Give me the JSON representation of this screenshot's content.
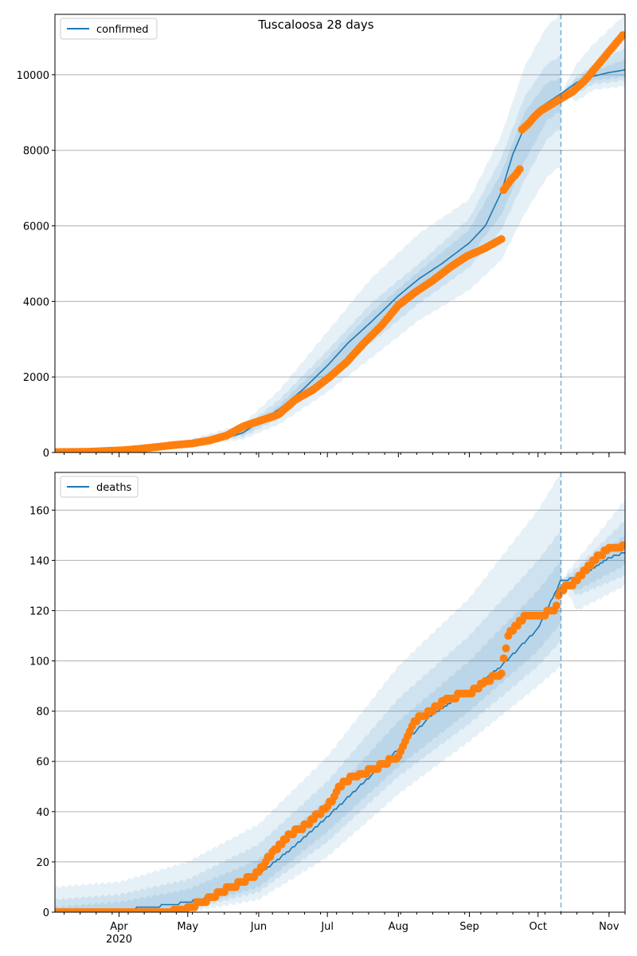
{
  "figure_title": "Tuscaloosa 28 days",
  "colors": {
    "model": "#1f77b4",
    "observed": "#ff7f0e",
    "band": "#1f77b4",
    "grid": "#b0b0b0",
    "forecast_line": "#1f77b4"
  },
  "chart_data": [
    {
      "type": "line",
      "name": "confirmed",
      "title": "Tuscaloosa 28 days",
      "legend": [
        "confirmed"
      ],
      "legend_position": "top-left",
      "xlabel": "",
      "ylabel": "",
      "xlim": [
        "2020-03-04",
        "2020-11-08"
      ],
      "ylim": [
        0,
        11600
      ],
      "yticks": [
        0,
        2000,
        4000,
        6000,
        8000,
        10000
      ],
      "ytick_labels": [
        "0",
        "2000",
        "4000",
        "6000",
        "8000",
        "10000"
      ],
      "grid": "y",
      "forecast_start": "2020-10-11",
      "model": {
        "x": [
          "2020-03-04",
          "2020-03-15",
          "2020-04-01",
          "2020-04-15",
          "2020-05-01",
          "2020-05-15",
          "2020-05-25",
          "2020-06-01",
          "2020-06-10",
          "2020-06-20",
          "2020-07-01",
          "2020-07-10",
          "2020-07-20",
          "2020-08-01",
          "2020-08-10",
          "2020-08-20",
          "2020-09-01",
          "2020-09-08",
          "2020-09-15",
          "2020-09-20",
          "2020-09-25",
          "2020-10-01",
          "2020-10-06",
          "2020-10-11",
          "2020-10-18",
          "2020-10-25",
          "2020-11-01",
          "2020-11-08"
        ],
        "y": [
          10,
          20,
          50,
          120,
          220,
          330,
          520,
          800,
          1150,
          1650,
          2300,
          2900,
          3450,
          4150,
          4600,
          5000,
          5550,
          6000,
          6900,
          7900,
          8600,
          9100,
          9300,
          9500,
          9800,
          9960,
          10060,
          10130
        ]
      },
      "bands": {
        "x": [
          "2020-03-04",
          "2020-04-01",
          "2020-05-01",
          "2020-05-25",
          "2020-06-10",
          "2020-07-01",
          "2020-07-20",
          "2020-08-10",
          "2020-09-01",
          "2020-09-15",
          "2020-09-25",
          "2020-10-05",
          "2020-10-11",
          "2020-10-18",
          "2020-10-25",
          "2020-11-08"
        ],
        "outer_low": [
          0,
          30,
          150,
          350,
          750,
          1600,
          2500,
          3500,
          4300,
          5100,
          6300,
          7300,
          7600,
          9300,
          9600,
          9700
        ],
        "outer_high": [
          50,
          100,
          330,
          750,
          1650,
          3200,
          4600,
          5800,
          6700,
          8400,
          10200,
          11300,
          11600,
          10300,
          10800,
          11600
        ],
        "mid_low": [
          0,
          40,
          180,
          420,
          900,
          1900,
          2900,
          3950,
          4900,
          5900,
          7200,
          8300,
          8600,
          9500,
          9750,
          9850
        ],
        "mid_high": [
          35,
          80,
          280,
          650,
          1400,
          2700,
          3950,
          5000,
          6200,
          7800,
          9400,
          10300,
          10500,
          9950,
          10250,
          10700
        ],
        "inner_low": [
          5,
          45,
          200,
          470,
          1000,
          2050,
          3150,
          4200,
          5200,
          6300,
          7700,
          8800,
          9050,
          9650,
          9850,
          9950
        ],
        "inner_high": [
          25,
          65,
          250,
          580,
          1250,
          2500,
          3700,
          4800,
          5900,
          7400,
          9000,
          9800,
          9900,
          9900,
          10100,
          10400
        ]
      },
      "observed": {
        "segments": [
          {
            "x_start": "2020-03-04",
            "x_end": "2020-09-15",
            "y": [
              10,
              15,
              20,
              40,
              60,
              100,
              150,
              200,
              240,
              320,
              450,
              700,
              850,
              1000,
              1400,
              1650,
              2000,
              2400,
              2900,
              3350,
              3900,
              4250,
              4550,
              4900,
              5200,
              5400,
              5650
            ]
          },
          {
            "x_start": "2020-09-16",
            "x_end": "2020-09-23",
            "y": [
              6950,
              7100,
              7250,
              7350,
              7500
            ]
          },
          {
            "x_start": "2020-09-24",
            "x_end": "2020-11-07",
            "y": [
              8550,
              8700,
              8900,
              9050,
              9150,
              9250,
              9350,
              9450,
              9550,
              9700,
              9850,
              10050,
              10250,
              10450,
              10650,
              10850,
              11050
            ]
          }
        ]
      }
    },
    {
      "type": "line",
      "name": "deaths",
      "title": "",
      "legend": [
        "deaths"
      ],
      "legend_position": "top-left",
      "xlabel": "",
      "ylabel": "",
      "xlim": [
        "2020-03-04",
        "2020-11-08"
      ],
      "ylim": [
        0,
        175
      ],
      "yticks": [
        0,
        20,
        40,
        60,
        80,
        100,
        120,
        140,
        160
      ],
      "ytick_labels": [
        "0",
        "20",
        "40",
        "60",
        "80",
        "100",
        "120",
        "140",
        "160"
      ],
      "xticks": [
        "2020-04-01",
        "2020-05-01",
        "2020-06-01",
        "2020-07-01",
        "2020-08-01",
        "2020-09-01",
        "2020-10-01",
        "2020-11-01"
      ],
      "xtick_labels": [
        "Apr\n2020",
        "May",
        "Jun",
        "Jul",
        "Aug",
        "Sep",
        "Oct",
        "Nov"
      ],
      "grid": "y",
      "forecast_start": "2020-10-11",
      "model": {
        "x": [
          "2020-03-04",
          "2020-04-01",
          "2020-04-15",
          "2020-05-01",
          "2020-05-15",
          "2020-06-01",
          "2020-06-15",
          "2020-07-01",
          "2020-07-15",
          "2020-08-01",
          "2020-08-15",
          "2020-09-01",
          "2020-09-15",
          "2020-10-01",
          "2020-10-11",
          "2020-10-18",
          "2020-10-25",
          "2020-11-01",
          "2020-11-08"
        ],
        "y": [
          0,
          1,
          2,
          4,
          7,
          15,
          25,
          38,
          50,
          65,
          78,
          88,
          98,
          113,
          132,
          133,
          137,
          141,
          143
        ]
      },
      "bands": {
        "x": [
          "2020-03-04",
          "2020-04-01",
          "2020-05-01",
          "2020-06-01",
          "2020-07-01",
          "2020-08-01",
          "2020-09-01",
          "2020-10-01",
          "2020-10-11",
          "2020-10-18",
          "2020-11-08"
        ],
        "outer_low": [
          0,
          0,
          0,
          5,
          22,
          47,
          68,
          90,
          98,
          120,
          130
        ],
        "outer_high": [
          10,
          12,
          20,
          35,
          62,
          98,
          125,
          160,
          175,
          140,
          164
        ],
        "mid_low": [
          0,
          0,
          1,
          8,
          28,
          54,
          75,
          98,
          108,
          126,
          134
        ],
        "mid_high": [
          5,
          7,
          13,
          27,
          52,
          85,
          110,
          140,
          152,
          137,
          156
        ],
        "inner_low": [
          0,
          0,
          2,
          10,
          32,
          58,
          80,
          104,
          115,
          128,
          138
        ],
        "inner_high": [
          2,
          4,
          9,
          21,
          45,
          76,
          100,
          128,
          140,
          135,
          150
        ]
      },
      "observed": {
        "points": {
          "x": [
            "2020-03-04",
            "2020-04-15",
            "2020-04-25",
            "2020-05-01",
            "2020-05-08",
            "2020-05-15",
            "2020-05-25",
            "2020-06-01",
            "2020-06-08",
            "2020-06-15",
            "2020-06-22",
            "2020-07-01",
            "2020-07-08",
            "2020-07-15",
            "2020-07-22",
            "2020-08-01",
            "2020-08-08",
            "2020-08-15",
            "2020-08-22",
            "2020-09-01",
            "2020-09-08",
            "2020-09-15",
            "2020-09-18",
            "2020-09-25",
            "2020-10-01",
            "2020-10-08",
            "2020-10-11",
            "2020-10-18",
            "2020-10-25",
            "2020-11-01",
            "2020-11-07"
          ],
          "y": [
            0,
            0,
            1,
            2,
            4,
            8,
            12,
            16,
            25,
            31,
            35,
            42,
            52,
            55,
            57,
            62,
            76,
            80,
            85,
            87,
            92,
            95,
            110,
            118,
            118,
            120,
            128,
            132,
            140,
            145,
            146
          ]
        }
      }
    }
  ]
}
